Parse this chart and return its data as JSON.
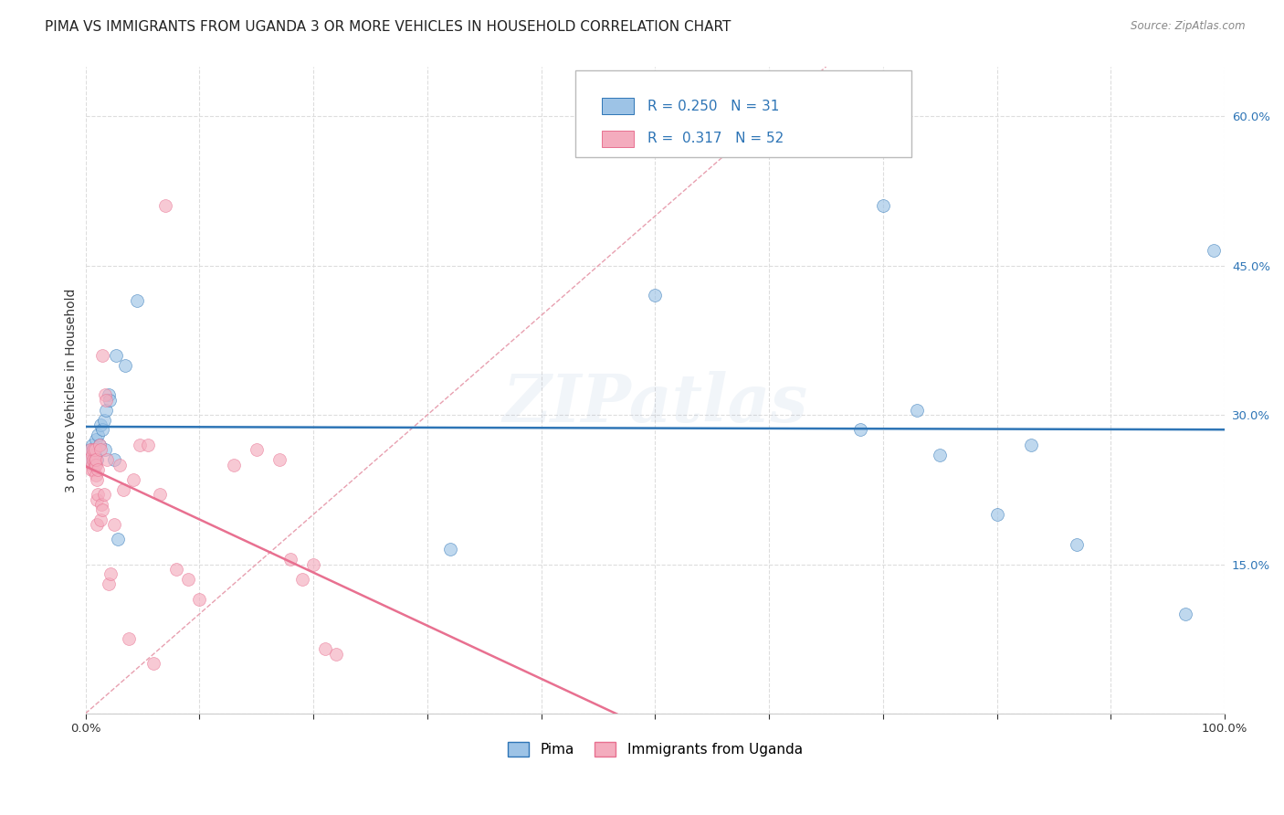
{
  "title": "PIMA VS IMMIGRANTS FROM UGANDA 3 OR MORE VEHICLES IN HOUSEHOLD CORRELATION CHART",
  "source": "Source: ZipAtlas.com",
  "ylabel": "3 or more Vehicles in Household",
  "watermark": "ZIPatlas",
  "xlim": [
    0,
    1.0
  ],
  "ylim": [
    0,
    0.65
  ],
  "xticks": [
    0.0,
    0.1,
    0.2,
    0.3,
    0.4,
    0.5,
    0.6,
    0.7,
    0.8,
    0.9,
    1.0
  ],
  "xtick_labels": [
    "0.0%",
    "",
    "",
    "",
    "",
    "",
    "",
    "",
    "",
    "",
    "100.0%"
  ],
  "yticks": [
    0.0,
    0.15,
    0.3,
    0.45,
    0.6
  ],
  "ytick_labels": [
    "",
    "15.0%",
    "30.0%",
    "45.0%",
    "60.0%"
  ],
  "legend1_label": "Pima",
  "legend2_label": "Immigrants from Uganda",
  "R1": 0.25,
  "N1": 31,
  "R2": 0.317,
  "N2": 52,
  "color_blue": "#9DC3E6",
  "color_pink": "#F4ACBE",
  "trendline_blue": "#2E75B6",
  "trendline_pink": "#E87090",
  "diag_dash_color": "#E8A0B0",
  "grid_color": "#DDDDDD",
  "background_color": "#FFFFFF",
  "marker_size": 100,
  "marker_alpha": 0.65,
  "title_fontsize": 11,
  "axis_label_fontsize": 10,
  "tick_fontsize": 9.5,
  "legend_fontsize": 11,
  "watermark_fontsize": 52,
  "watermark_alpha": 0.1,
  "watermark_color": "#7FA0C8",
  "blue_x": [
    0.003,
    0.004,
    0.006,
    0.008,
    0.009,
    0.01,
    0.011,
    0.012,
    0.013,
    0.015,
    0.016,
    0.017,
    0.018,
    0.02,
    0.021,
    0.025,
    0.027,
    0.028,
    0.035,
    0.045,
    0.32,
    0.5,
    0.68,
    0.7,
    0.73,
    0.75,
    0.8,
    0.83,
    0.87,
    0.965,
    0.99
  ],
  "blue_y": [
    0.255,
    0.265,
    0.27,
    0.26,
    0.275,
    0.255,
    0.28,
    0.27,
    0.29,
    0.285,
    0.295,
    0.265,
    0.305,
    0.32,
    0.315,
    0.255,
    0.36,
    0.175,
    0.35,
    0.415,
    0.165,
    0.42,
    0.285,
    0.51,
    0.305,
    0.26,
    0.2,
    0.27,
    0.17,
    0.1,
    0.465
  ],
  "pink_x": [
    0.003,
    0.004,
    0.005,
    0.006,
    0.006,
    0.007,
    0.007,
    0.007,
    0.008,
    0.008,
    0.008,
    0.009,
    0.009,
    0.009,
    0.01,
    0.01,
    0.01,
    0.011,
    0.011,
    0.012,
    0.013,
    0.013,
    0.014,
    0.015,
    0.015,
    0.016,
    0.017,
    0.018,
    0.019,
    0.02,
    0.022,
    0.025,
    0.03,
    0.033,
    0.038,
    0.042,
    0.048,
    0.055,
    0.06,
    0.065,
    0.07,
    0.08,
    0.09,
    0.1,
    0.13,
    0.15,
    0.17,
    0.18,
    0.19,
    0.2,
    0.21,
    0.22
  ],
  "pink_y": [
    0.255,
    0.265,
    0.245,
    0.25,
    0.26,
    0.245,
    0.255,
    0.265,
    0.25,
    0.255,
    0.265,
    0.24,
    0.25,
    0.255,
    0.19,
    0.215,
    0.235,
    0.22,
    0.245,
    0.27,
    0.195,
    0.265,
    0.21,
    0.205,
    0.36,
    0.22,
    0.32,
    0.315,
    0.255,
    0.13,
    0.14,
    0.19,
    0.25,
    0.225,
    0.075,
    0.235,
    0.27,
    0.27,
    0.05,
    0.22,
    0.51,
    0.145,
    0.135,
    0.115,
    0.25,
    0.265,
    0.255,
    0.155,
    0.135,
    0.15,
    0.065,
    0.06
  ]
}
